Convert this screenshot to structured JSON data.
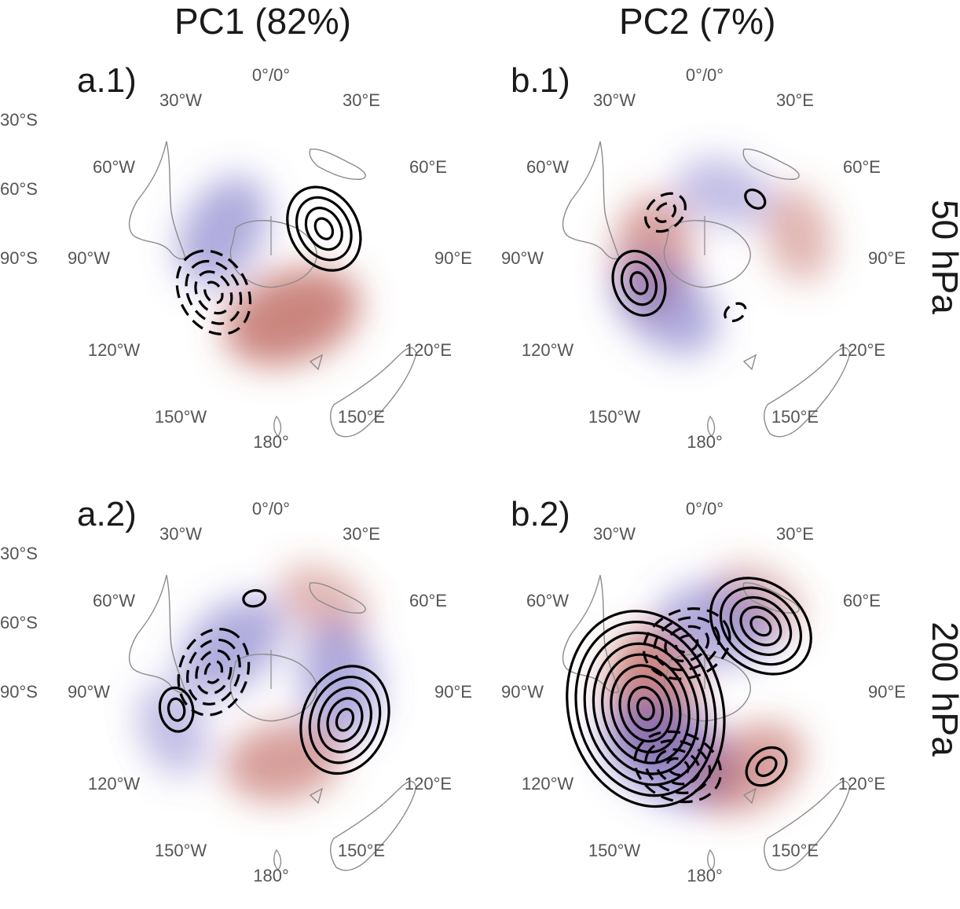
{
  "colors": {
    "positive_fill": "#b5524a",
    "negative_fill": "#6f67c2",
    "contour": "#000000",
    "coastline": "#8c8c8c",
    "tick_text": "#555555"
  },
  "chart_data": {
    "type": "polar-stereographic-map-panels",
    "columns": [
      {
        "id": "a",
        "label": "PC1 (82%)"
      },
      {
        "id": "b",
        "label": "PC2 (7%)"
      }
    ],
    "rows": [
      {
        "id": "1",
        "label": "50 hPa"
      },
      {
        "id": "2",
        "label": "200 hPa"
      }
    ],
    "longitude_ticks": [
      "0°/0°",
      "30°E",
      "60°E",
      "90°E",
      "120°E",
      "150°E",
      "180°",
      "150°W",
      "120°W",
      "90°W",
      "60°W",
      "30°W"
    ],
    "latitude_ticks": [
      "30°S",
      "60°S",
      "90°S"
    ],
    "panels": [
      {
        "label": "a.1)",
        "column": "PC1 (82%)",
        "row": "50 hPa",
        "anomalies": [
          {
            "sign": "negative",
            "lon": -60,
            "lat": -58,
            "strength": 2
          },
          {
            "sign": "positive",
            "lon": 160,
            "lat": -55,
            "strength": 3
          }
        ],
        "contours": [
          {
            "sign": "positive",
            "lon": 60,
            "lat": -55,
            "levels": 4
          },
          {
            "sign": "negative",
            "lon": -120,
            "lat": -52,
            "levels": 4
          }
        ]
      },
      {
        "label": "b.1)",
        "column": "PC2 (7%)",
        "row": "50 hPa",
        "anomalies": [
          {
            "sign": "negative",
            "lon": 15,
            "lat": -50,
            "strength": 1
          },
          {
            "sign": "positive",
            "lon": -85,
            "lat": -60,
            "strength": 2
          },
          {
            "sign": "negative",
            "lon": -140,
            "lat": -55,
            "strength": 2
          },
          {
            "sign": "positive",
            "lon": 75,
            "lat": -35,
            "strength": 1
          }
        ],
        "contours": [
          {
            "sign": "positive",
            "lon": 40,
            "lat": -45,
            "levels": 1
          },
          {
            "sign": "positive",
            "lon": -110,
            "lat": -50,
            "levels": 3
          },
          {
            "sign": "negative",
            "lon": -40,
            "lat": -55,
            "levels": 2
          },
          {
            "sign": "negative",
            "lon": 150,
            "lat": -55,
            "levels": 1
          }
        ]
      },
      {
        "label": "a.2)",
        "column": "PC1 (82%)",
        "row": "200 hPa",
        "anomalies": [
          {
            "sign": "positive",
            "lon": 30,
            "lat": -30,
            "strength": 1
          },
          {
            "sign": "negative",
            "lon": -40,
            "lat": -55,
            "strength": 2
          },
          {
            "sign": "negative",
            "lon": 80,
            "lat": -50,
            "strength": 2
          },
          {
            "sign": "positive",
            "lon": 170,
            "lat": -50,
            "strength": 2
          },
          {
            "sign": "negative",
            "lon": -110,
            "lat": -30,
            "strength": 1
          }
        ],
        "contours": [
          {
            "sign": "positive",
            "lon": 110,
            "lat": -45,
            "levels": 5
          },
          {
            "sign": "negative",
            "lon": -70,
            "lat": -55,
            "levels": 4
          },
          {
            "sign": "positive",
            "lon": -100,
            "lat": -35,
            "levels": 2
          },
          {
            "sign": "positive",
            "lon": -10,
            "lat": -35,
            "levels": 1
          }
        ]
      },
      {
        "label": "b.2)",
        "column": "PC2 (7%)",
        "row": "200 hPa",
        "anomalies": [
          {
            "sign": "positive",
            "lon": 30,
            "lat": -30,
            "strength": 1
          },
          {
            "sign": "negative",
            "lon": 10,
            "lat": -50,
            "strength": 2
          },
          {
            "sign": "positive",
            "lon": -95,
            "lat": -60,
            "strength": 3
          },
          {
            "sign": "negative",
            "lon": -150,
            "lat": -50,
            "strength": 3
          },
          {
            "sign": "positive",
            "lon": 150,
            "lat": -40,
            "strength": 2
          }
        ],
        "contours": [
          {
            "sign": "positive",
            "lon": -105,
            "lat": -55,
            "levels": 9
          },
          {
            "sign": "positive",
            "lon": 40,
            "lat": -40,
            "levels": 5
          },
          {
            "sign": "negative",
            "lon": -20,
            "lat": -60,
            "levels": 4
          },
          {
            "sign": "negative",
            "lon": -160,
            "lat": -45,
            "levels": 4
          },
          {
            "sign": "positive",
            "lon": 140,
            "lat": -35,
            "levels": 2
          }
        ]
      }
    ]
  }
}
